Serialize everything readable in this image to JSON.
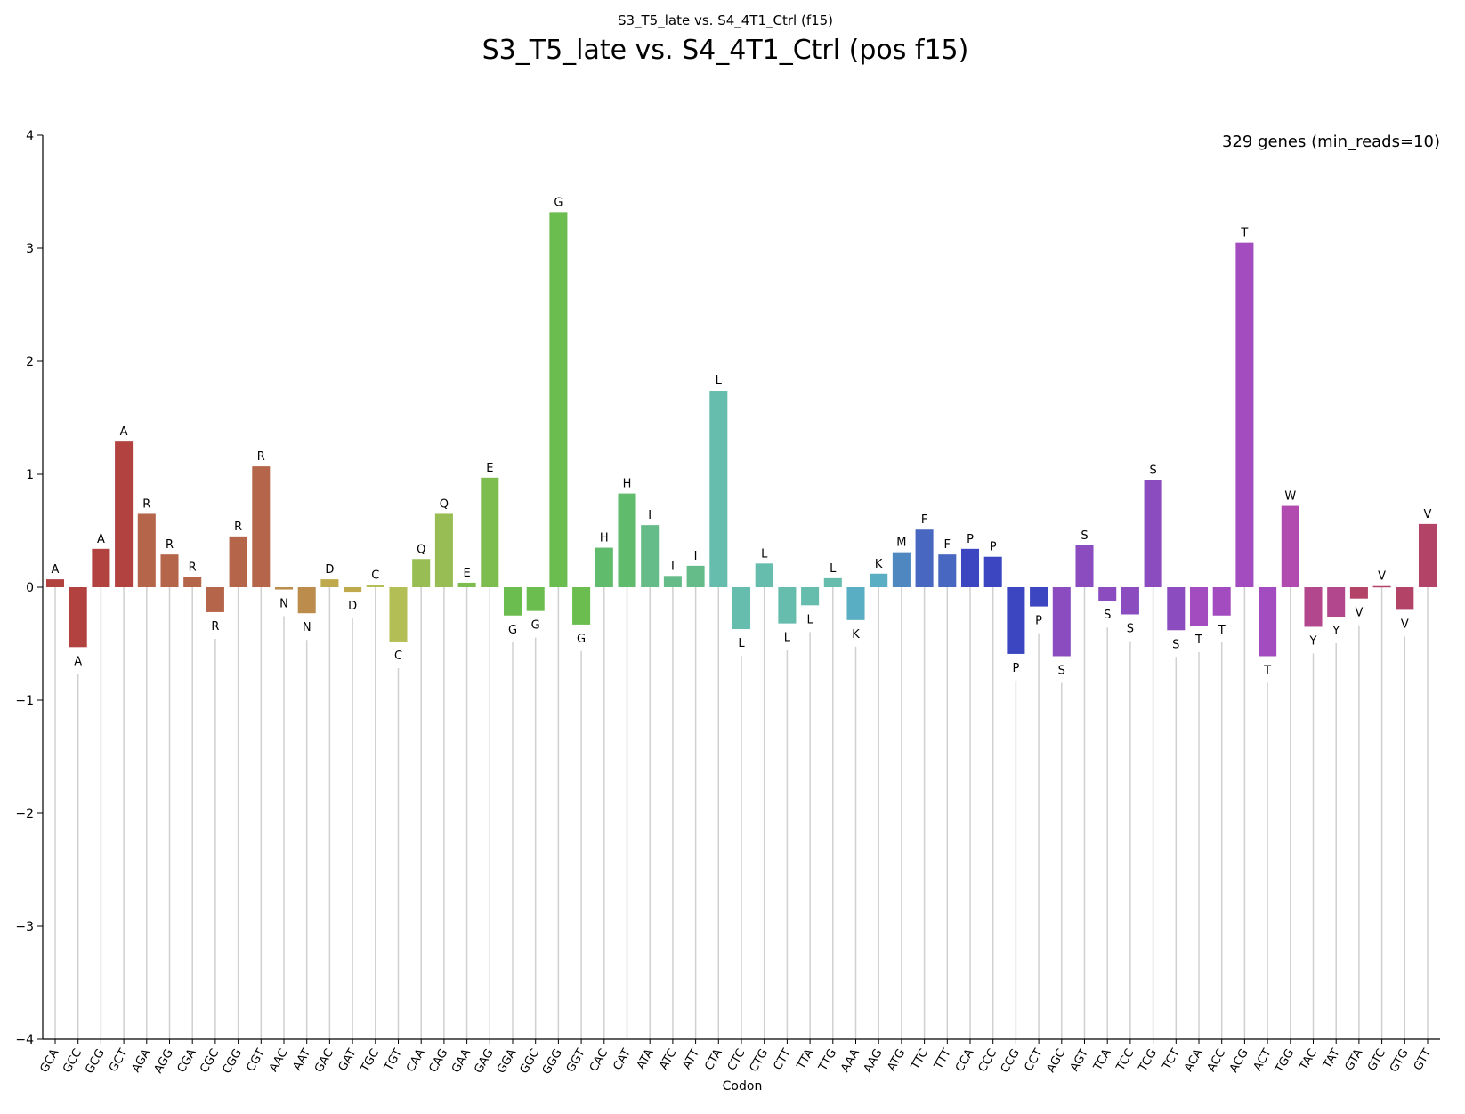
{
  "chart_data": {
    "type": "bar",
    "suptitle": "S3_T5_late vs. S4_4T1_Ctrl (f15)",
    "title": "S3_T5_late vs. S4_4T1_Ctrl (pos f15)",
    "annotation": "329 genes (min_reads=10)",
    "xlabel": "Codon",
    "ylabel": "",
    "ylim": [
      -4,
      4
    ],
    "yticks": [
      -4,
      -3,
      -2,
      -1,
      0,
      1,
      2,
      3,
      4
    ],
    "ytick_labels": [
      "−4",
      "−3",
      "−2",
      "−1",
      "0",
      "1",
      "2",
      "3",
      "4"
    ],
    "grid": false,
    "categories": [
      "GCA",
      "GCC",
      "GCG",
      "GCT",
      "AGA",
      "AGG",
      "CGA",
      "CGC",
      "CGG",
      "CGT",
      "AAC",
      "AAT",
      "GAC",
      "GAT",
      "TGC",
      "TGT",
      "CAA",
      "CAG",
      "GAA",
      "GAG",
      "GGA",
      "GGC",
      "GGG",
      "GGT",
      "CAC",
      "CAT",
      "ATA",
      "ATC",
      "ATT",
      "CTA",
      "CTC",
      "CTG",
      "CTT",
      "TTA",
      "TTG",
      "AAA",
      "AAG",
      "ATG",
      "TTC",
      "TTT",
      "CCA",
      "CCC",
      "CCG",
      "CCT",
      "AGC",
      "AGT",
      "TCA",
      "TCC",
      "TCG",
      "TCT",
      "ACA",
      "ACC",
      "ACG",
      "ACT",
      "TGG",
      "TAC",
      "TAT",
      "GTA",
      "GTC",
      "GTG",
      "GTT"
    ],
    "amino_acids": [
      "A",
      "A",
      "A",
      "A",
      "R",
      "R",
      "R",
      "R",
      "R",
      "R",
      "N",
      "N",
      "D",
      "D",
      "C",
      "C",
      "Q",
      "Q",
      "E",
      "E",
      "G",
      "G",
      "G",
      "G",
      "H",
      "H",
      "I",
      "I",
      "I",
      "L",
      "L",
      "L",
      "L",
      "L",
      "L",
      "K",
      "K",
      "M",
      "F",
      "F",
      "P",
      "P",
      "P",
      "P",
      "S",
      "S",
      "S",
      "S",
      "S",
      "S",
      "T",
      "T",
      "T",
      "T",
      "W",
      "Y",
      "Y",
      "V",
      "V",
      "V",
      "V"
    ],
    "values": [
      0.07,
      -0.53,
      0.34,
      1.29,
      0.65,
      0.29,
      0.09,
      -0.22,
      0.45,
      1.07,
      -0.02,
      -0.23,
      0.07,
      -0.04,
      0.02,
      -0.48,
      0.25,
      0.65,
      0.04,
      0.97,
      -0.25,
      -0.21,
      3.32,
      -0.33,
      0.35,
      0.83,
      0.55,
      0.1,
      0.19,
      1.74,
      -0.37,
      0.21,
      -0.32,
      -0.16,
      0.08,
      -0.29,
      0.12,
      0.31,
      0.51,
      0.29,
      0.34,
      0.27,
      -0.59,
      -0.17,
      -0.61,
      0.37,
      -0.12,
      -0.24,
      0.95,
      -0.38,
      -0.34,
      -0.25,
      3.05,
      -0.61,
      0.72,
      -0.35,
      -0.26,
      -0.1,
      0.01,
      -0.2,
      0.56
    ],
    "colors": [
      "#b2423f",
      "#b2423f",
      "#b2423f",
      "#b2423f",
      "#b5654a",
      "#b5654a",
      "#b5654a",
      "#b5654a",
      "#b5654a",
      "#b5654a",
      "#bb8c4c",
      "#bb8c4c",
      "#bfa94d",
      "#bfa94d",
      "#b3bf55",
      "#b3bf55",
      "#97bd54",
      "#97bd54",
      "#7dbd50",
      "#7dbd50",
      "#6bbd50",
      "#6bbd50",
      "#6bbd50",
      "#6bbd50",
      "#60bb6d",
      "#60bb6d",
      "#66bc88",
      "#66bc88",
      "#66bc88",
      "#66bdae",
      "#66bdae",
      "#66bdae",
      "#66bdae",
      "#66bdae",
      "#66bdae",
      "#5aaec3",
      "#5aaec3",
      "#4f88c1",
      "#4867c0",
      "#4867c0",
      "#3c46c0",
      "#3c46c0",
      "#3c46c0",
      "#3c46c0",
      "#8a4cbf",
      "#8a4cbf",
      "#8a4cbf",
      "#8a4cbf",
      "#8a4cbf",
      "#8a4cbf",
      "#a24cbf",
      "#a24cbf",
      "#a24cbf",
      "#a24cbf",
      "#b24bb0",
      "#b3478d",
      "#b3478d",
      "#b34468",
      "#b34468",
      "#b34468",
      "#b34468"
    ],
    "colors_note_free": true
  }
}
